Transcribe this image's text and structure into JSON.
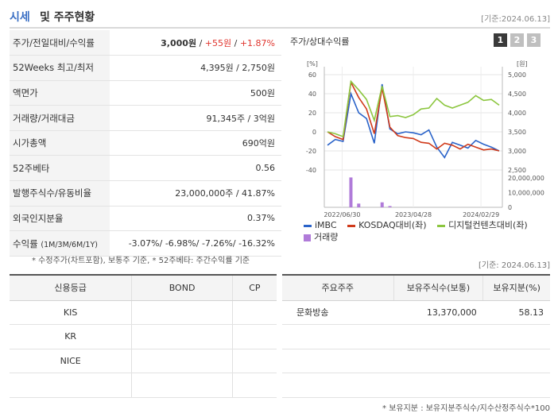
{
  "header": {
    "title_colored": "시세",
    "title_rest": "및 주주현황",
    "date": "[기준:2024.06.13]"
  },
  "quote": {
    "price_label": "주가/전일대비/수익률",
    "price": "3,000원",
    "change": "+55원",
    "change_pct": "+1.87%",
    "week52_label": "52Weeks 최고/최저",
    "week52_value": "4,395원 / 2,750원",
    "par_label": "액면가",
    "par_value": "500원",
    "volume_label": "거래량/거래대금",
    "volume_value": "91,345주 / 3억원",
    "mcap_label": "시가총액",
    "mcap_value": "690억원",
    "beta_label": "52주베타",
    "beta_value": "0.56",
    "shares_label": "발행주식수/유동비율",
    "shares_value": "23,000,000주 / 41.87%",
    "foreign_label": "외국인지분율",
    "foreign_value": "0.37%",
    "return_label": "수익률",
    "return_label_sub": "(1M/3M/6M/1Y)",
    "return_values": [
      "-3.07%",
      "-6.98%",
      "-7.26%",
      "-16.32%"
    ]
  },
  "notes1": "* 수정주가(차트포함), 보통주 기준, * 52주베타: 주간수익률 기준",
  "chart_panel": {
    "title": "주가/상대수익률",
    "tabs": [
      "1",
      "2",
      "3"
    ]
  },
  "chart_data": {
    "type": "line",
    "left_axis_unit": "[%]",
    "right_axis_unit": "[원]",
    "left_ticks": [
      "60",
      "40",
      "20",
      "0",
      "-20",
      "-40"
    ],
    "right_ticks": [
      "5,000",
      "4,500",
      "4,000",
      "3,500",
      "3,000",
      "2,500"
    ],
    "volume_ticks": [
      "20,000,000",
      "10,000,000",
      "0"
    ],
    "x_ticks": [
      "2022/06/30",
      "2023/04/28",
      "2024/02/29"
    ],
    "left_ylim": [
      -40,
      60
    ],
    "series": [
      {
        "name": "iMBC",
        "color": "#2a63c9",
        "values": [
          -14,
          -8,
          -10,
          40,
          20,
          14,
          -12,
          50,
          3,
          -2,
          0,
          -1,
          -3,
          2,
          -16,
          -27,
          -11,
          -14,
          -17,
          -9,
          -13,
          -16,
          -20
        ]
      },
      {
        "name": "KOSDAQ대비(좌)",
        "color": "#d03a1a",
        "values": [
          0,
          -5,
          -8,
          52,
          36,
          24,
          -2,
          46,
          5,
          -4,
          -6,
          -7,
          -11,
          -12,
          -18,
          -12,
          -14,
          -18,
          -13,
          -16,
          -19,
          -18,
          -20
        ]
      },
      {
        "name": "디지털컨텐츠대비(좌)",
        "color": "#8cc63f",
        "values": [
          0,
          -2,
          -5,
          53,
          44,
          34,
          12,
          48,
          16,
          17,
          15,
          18,
          24,
          25,
          35,
          28,
          25,
          28,
          31,
          38,
          33,
          34,
          28
        ]
      }
    ],
    "volume": {
      "name": "거래량",
      "color": "#b07bd9",
      "values": [
        0,
        0,
        0,
        24,
        3,
        0,
        0,
        4,
        1,
        0,
        0,
        0,
        0,
        0,
        0,
        0,
        0,
        0,
        0,
        0,
        0,
        0,
        0
      ]
    }
  },
  "date2": "[기준: 2024.06.13]",
  "credit": {
    "headers": [
      "신용등급",
      "BOND",
      "CP"
    ],
    "rows": [
      [
        "KIS",
        "",
        ""
      ],
      [
        "KR",
        "",
        ""
      ],
      [
        "NICE",
        "",
        ""
      ],
      [
        "",
        "",
        ""
      ]
    ]
  },
  "holders": {
    "headers": [
      "주요주주",
      "보유주식수(보통)",
      "보유지분(%)"
    ],
    "rows": [
      [
        "문화방송",
        "13,370,000",
        "58.13"
      ],
      [
        "",
        "",
        ""
      ],
      [
        "",
        "",
        ""
      ],
      [
        "",
        "",
        ""
      ]
    ]
  },
  "notes2": "* 보유지분 : 보유지분주식수/지수산정주식수*100"
}
